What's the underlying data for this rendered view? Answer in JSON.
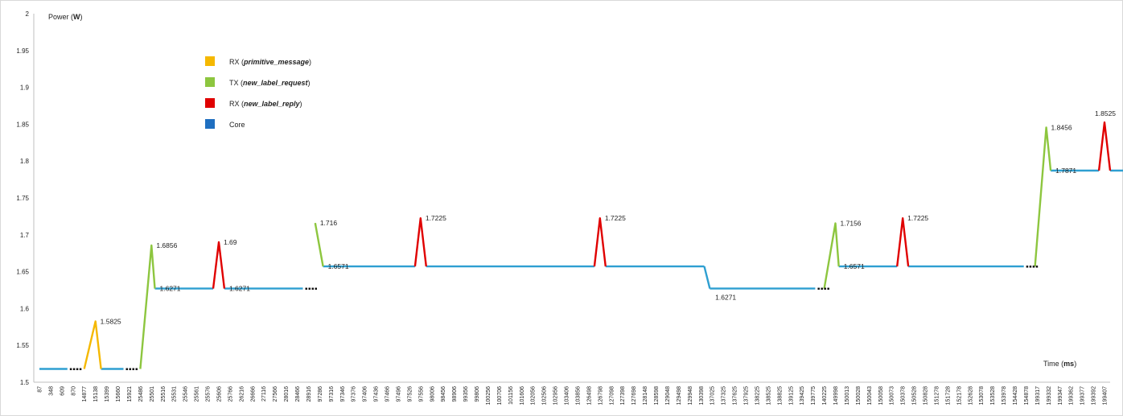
{
  "chart_data": {
    "type": "line",
    "title": "",
    "ylabel_prefix": "Power (",
    "ylabel_unit": "W",
    "ylabel_suffix": ")",
    "xlabel_prefix": "Time (",
    "xlabel_unit": "ms",
    "xlabel_suffix": ")",
    "ylim": [
      1.5,
      2.0
    ],
    "yticks": [
      "1.5",
      "1.55",
      "1.6",
      "1.65",
      "1.7",
      "1.75",
      "1.8",
      "1.85",
      "1.9",
      "1.95",
      "2"
    ],
    "grid": false,
    "legend_position": "top-left",
    "categories": [
      "87",
      "348",
      "609",
      "870",
      "14877",
      "15138",
      "15399",
      "15660",
      "15921",
      "25486",
      "25501",
      "25516",
      "25531",
      "25546",
      "25561",
      "25576",
      "25606",
      "25766",
      "26216",
      "26666",
      "27116",
      "27566",
      "28016",
      "28466",
      "28916",
      "97286",
      "97316",
      "97346",
      "97376",
      "97406",
      "97436",
      "97466",
      "97496",
      "97526",
      "97556",
      "98006",
      "98456",
      "98906",
      "99356",
      "99806",
      "100256",
      "100706",
      "101156",
      "101606",
      "102056",
      "102506",
      "102956",
      "103406",
      "103856",
      "126498",
      "126798",
      "127098",
      "127398",
      "127698",
      "128148",
      "128598",
      "129048",
      "129498",
      "129948",
      "130398",
      "137025",
      "137325",
      "137625",
      "137925",
      "138225",
      "138525",
      "138825",
      "139125",
      "139425",
      "139775",
      "140225",
      "149998",
      "150013",
      "150028",
      "150043",
      "150058",
      "150073",
      "150378",
      "150528",
      "150828",
      "151278",
      "151728",
      "152178",
      "152628",
      "153078",
      "153528",
      "153978",
      "154428",
      "154878",
      "199317",
      "199332",
      "199347",
      "199362",
      "199377",
      "199392",
      "199407"
    ],
    "series": [
      {
        "name": "RX (primitive_message)",
        "name_plain": "RX (",
        "name_em": "primitive_message",
        "name_end": ")",
        "color": "#f5b800",
        "segments": [
          [
            [
              4,
              1.518
            ],
            [
              5,
              1.5825
            ],
            [
              5.5,
              1.518
            ]
          ]
        ]
      },
      {
        "name": "TX (new_label_request)",
        "name_plain": "TX (",
        "name_em": "new_label_request",
        "name_end": ")",
        "color": "#8dc63f",
        "segments": [
          [
            [
              9,
              1.518
            ],
            [
              10,
              1.6856
            ],
            [
              10.3,
              1.6271
            ]
          ],
          [
            [
              24.6,
              1.716
            ],
            [
              25.3,
              1.6571
            ]
          ],
          [
            [
              70,
              1.627
            ],
            [
              71,
              1.7156
            ],
            [
              71.3,
              1.6571
            ]
          ],
          [
            [
              88.8,
              1.657
            ],
            [
              89.8,
              1.8456
            ],
            [
              90.2,
              1.7871
            ]
          ]
        ]
      },
      {
        "name": "RX (new_label_reply)",
        "name_plain": "RX (",
        "name_em": "new_label_reply",
        "name_end": ")",
        "color": "#e00000",
        "segments": [
          [
            [
              15.5,
              1.6271
            ],
            [
              16,
              1.69
            ],
            [
              16.5,
              1.6271
            ]
          ],
          [
            [
              33.5,
              1.6571
            ],
            [
              34,
              1.7225
            ],
            [
              34.5,
              1.6571
            ]
          ],
          [
            [
              49.5,
              1.6571
            ],
            [
              50,
              1.7225
            ],
            [
              50.5,
              1.6571
            ]
          ],
          [
            [
              76.5,
              1.6571
            ],
            [
              77,
              1.7225
            ],
            [
              77.5,
              1.6571
            ]
          ],
          [
            [
              94.5,
              1.7871
            ],
            [
              95,
              1.8525
            ],
            [
              95.5,
              1.7871
            ]
          ]
        ]
      },
      {
        "name": "Core",
        "name_plain": "Core",
        "name_em": "",
        "name_end": "",
        "color": "#2e9fd1",
        "legend_color": "#1f6fc0",
        "segments": [
          [
            [
              0,
              1.518
            ],
            [
              2.5,
              1.518
            ]
          ],
          [
            [
              5.5,
              1.518
            ],
            [
              7.5,
              1.518
            ]
          ],
          [
            [
              10.3,
              1.6271
            ],
            [
              15.5,
              1.6271
            ]
          ],
          [
            [
              16.5,
              1.6271
            ],
            [
              23.5,
              1.6271
            ]
          ],
          [
            [
              25.3,
              1.6571
            ],
            [
              33.5,
              1.6571
            ]
          ],
          [
            [
              34.5,
              1.6571
            ],
            [
              49.5,
              1.6571
            ]
          ],
          [
            [
              50.5,
              1.6571
            ],
            [
              59.3,
              1.6571
            ]
          ],
          [
            [
              59.3,
              1.6571
            ],
            [
              59.8,
              1.6271
            ]
          ],
          [
            [
              59.8,
              1.6271
            ],
            [
              69.2,
              1.6271
            ]
          ],
          [
            [
              71.3,
              1.6571
            ],
            [
              76.5,
              1.6571
            ]
          ],
          [
            [
              77.5,
              1.6571
            ],
            [
              87.8,
              1.6571
            ]
          ],
          [
            [
              90.2,
              1.7871
            ],
            [
              94.5,
              1.7871
            ]
          ],
          [
            [
              95.5,
              1.7871
            ],
            [
              97,
              1.7871
            ]
          ]
        ]
      }
    ],
    "data_labels": [
      {
        "text": "1.5825",
        "x": 5,
        "y": 1.5825
      },
      {
        "text": "1.6856",
        "x": 10,
        "y": 1.6856
      },
      {
        "text": "1.6271",
        "x": 10.3,
        "y": 1.6271
      },
      {
        "text": "1.69",
        "x": 16,
        "y": 1.69
      },
      {
        "text": "1.6271",
        "x": 16.5,
        "y": 1.6271
      },
      {
        "text": "1.716",
        "x": 24.6,
        "y": 1.716
      },
      {
        "text": "1.6571",
        "x": 25.3,
        "y": 1.6571
      },
      {
        "text": "1.7225",
        "x": 34,
        "y": 1.7225
      },
      {
        "text": "1.7225",
        "x": 50,
        "y": 1.7225
      },
      {
        "text": "1.6271",
        "x": 61,
        "y": 1.6271
      },
      {
        "text": "1.7156",
        "x": 71,
        "y": 1.7156
      },
      {
        "text": "1.6571",
        "x": 71.3,
        "y": 1.6571
      },
      {
        "text": "1.7225",
        "x": 77,
        "y": 1.7225
      },
      {
        "text": "1.8456",
        "x": 89.8,
        "y": 1.8456
      },
      {
        "text": "1.7871",
        "x": 90.2,
        "y": 1.7871
      },
      {
        "text": "1.8525",
        "x": 95,
        "y": 1.8525
      }
    ],
    "ellipses": [
      {
        "x": 2.5,
        "y": 1.518
      },
      {
        "x": 7.5,
        "y": 1.518
      },
      {
        "x": 23.5,
        "y": 1.6271
      },
      {
        "x": 69.2,
        "y": 1.6271
      },
      {
        "x": 87.8,
        "y": 1.6571
      }
    ]
  }
}
